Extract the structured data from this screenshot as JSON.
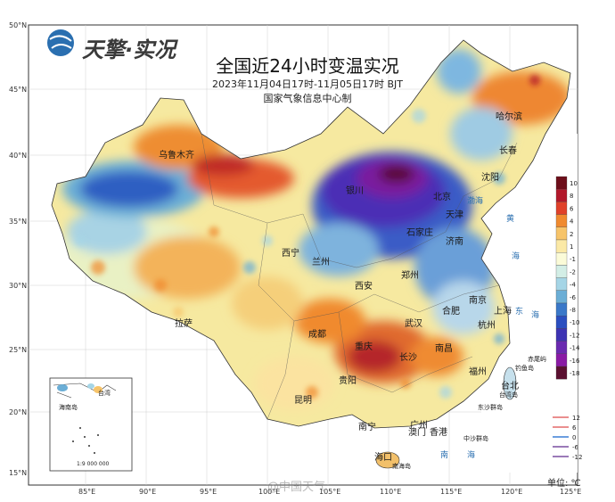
{
  "brand": {
    "name": "天擎·实况"
  },
  "title": "全国近24小时变温实况",
  "subtitle": "2023年11月04日17时-11月05日17时 BJT",
  "agency": "国家气象信息中心制",
  "unit_label": "单位: ℃",
  "watermark": "@中国天气",
  "lat_labels": [
    "50°N",
    "45°N",
    "40°N",
    "35°N",
    "30°N",
    "25°N",
    "20°N",
    "15°N"
  ],
  "lon_labels": [
    "85°E",
    "90°E",
    "95°E",
    "100°E",
    "105°E",
    "110°E",
    "115°E",
    "120°E",
    "125°E"
  ],
  "legend": {
    "colors": [
      "#6d0e1a",
      "#b2182b",
      "#e0412a",
      "#f08a2f",
      "#f7c46a",
      "#fbe9a6",
      "#fbfbd8",
      "#d3eee6",
      "#a5d5e6",
      "#6baed6",
      "#3a78c9",
      "#2a4ec0",
      "#3d33b3",
      "#6a2ab0",
      "#8a1aa5",
      "#5a1030"
    ],
    "labels": [
      "10",
      "8",
      "6",
      "4",
      "2",
      "1",
      "-1",
      "-2",
      "-4",
      "-6",
      "-8",
      "-10",
      "-12",
      "-14",
      "-16",
      "-18"
    ]
  },
  "line_legend": {
    "colors": [
      "#e46a6a",
      "#e46a6a",
      "#3b7fd6",
      "#7a4fa0",
      "#7a4fa0"
    ],
    "labels": [
      "12",
      "6",
      "0",
      "-6",
      "-12"
    ]
  },
  "cities": [
    {
      "name": "哈尔滨"
    },
    {
      "name": "长春"
    },
    {
      "name": "沈阳"
    },
    {
      "name": "乌鲁木齐"
    },
    {
      "name": "银川"
    },
    {
      "name": "北京"
    },
    {
      "name": "天津"
    },
    {
      "name": "石家庄"
    },
    {
      "name": "济南"
    },
    {
      "name": "西宁"
    },
    {
      "name": "兰州"
    },
    {
      "name": "郑州"
    },
    {
      "name": "西安"
    },
    {
      "name": "南京"
    },
    {
      "name": "合肥"
    },
    {
      "name": "上海"
    },
    {
      "name": "杭州"
    },
    {
      "name": "武汉"
    },
    {
      "name": "成都"
    },
    {
      "name": "拉萨"
    },
    {
      "name": "重庆"
    },
    {
      "name": "贵阳"
    },
    {
      "name": "长沙"
    },
    {
      "name": "南昌"
    },
    {
      "name": "福州"
    },
    {
      "name": "台北"
    },
    {
      "name": "昆明"
    },
    {
      "name": "南宁"
    },
    {
      "name": "广州"
    },
    {
      "name": "香港"
    },
    {
      "name": "海口"
    },
    {
      "name": "澳门"
    },
    {
      "name": "赤尾屿"
    },
    {
      "name": "钓鱼岛"
    },
    {
      "name": "台湾岛"
    },
    {
      "name": "东沙群岛"
    },
    {
      "name": "中沙群岛"
    },
    {
      "name": "南海岛"
    },
    {
      "name": "海南岛"
    },
    {
      "name": "台湾"
    },
    {
      "name": "渤海"
    }
  ],
  "seas": [
    {
      "name": "渤海"
    },
    {
      "name": "黄"
    },
    {
      "name": "海"
    },
    {
      "name": "东"
    },
    {
      "name": "海"
    },
    {
      "name": "南"
    },
    {
      "name": "海"
    },
    {
      "name": "黄海"
    }
  ],
  "inset": {
    "scale": "1:9 000 000"
  }
}
